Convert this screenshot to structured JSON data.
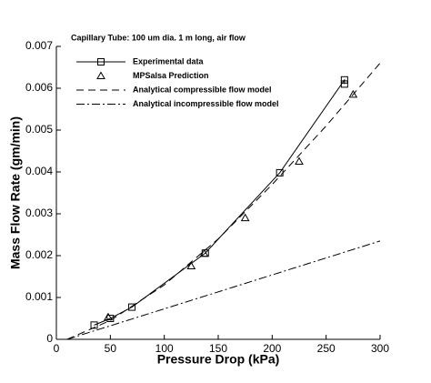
{
  "chart_data": {
    "type": "line",
    "annotation": "Capillary Tube: 100 um dia. 1 m long, air flow",
    "x_label": "Pressure Drop (kPa)",
    "y_label": "Mass Flow Rate (gm/min)",
    "xlim": [
      0,
      300
    ],
    "ylim": [
      0,
      0.007
    ],
    "xticks": [
      0,
      50,
      100,
      150,
      200,
      250,
      300
    ],
    "yticks": [
      0,
      0.001,
      0.002,
      0.003,
      0.004,
      0.005,
      0.006,
      0.007
    ],
    "series": [
      {
        "name": "Experimental data",
        "color": "#000000",
        "line_style": "solid",
        "marker": "square",
        "x": [
          35,
          50,
          70,
          138,
          207,
          267,
          267
        ],
        "values": [
          0.00034,
          0.0005,
          0.00077,
          0.00206,
          0.00398,
          0.0062,
          0.0061
        ]
      },
      {
        "name": "MPSalsa Prediction",
        "color": "#000000",
        "line_style": "none",
        "marker": "triangle",
        "x": [
          48,
          125,
          137,
          175,
          225,
          275
        ],
        "values": [
          0.00053,
          0.00175,
          0.00205,
          0.0029,
          0.00425,
          0.00585
        ]
      },
      {
        "name": "Analytical compressible flow model",
        "color": "#000000",
        "line_style": "dashed",
        "marker": null,
        "x": [
          10,
          50,
          100,
          150,
          200,
          250,
          300
        ],
        "values": [
          0,
          0.00045,
          0.0013,
          0.0024,
          0.0037,
          0.0051,
          0.0066
        ]
      },
      {
        "name": "Analytical incompressible flow model",
        "color": "#000000",
        "line_style": "dashdot",
        "marker": null,
        "x": [
          10,
          300
        ],
        "values": [
          0,
          0.00235
        ]
      }
    ]
  }
}
